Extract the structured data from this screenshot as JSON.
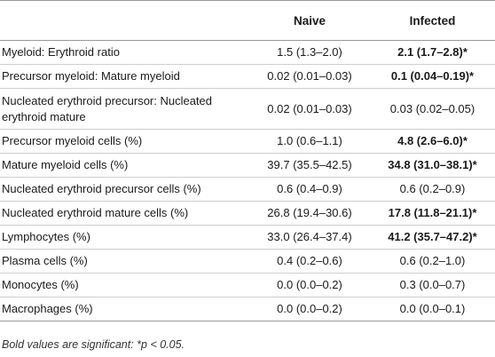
{
  "table": {
    "headers": [
      "",
      "Naive",
      "Infected"
    ],
    "rows": [
      {
        "label": "Myeloid: Erythroid ratio",
        "naive": "1.5 (1.3–2.0)",
        "infected": "2.1 (1.7–2.8)*",
        "infected_bold": true
      },
      {
        "label": "Precursor myeloid: Mature myeloid",
        "naive": "0.02 (0.01–0.03)",
        "infected": "0.1 (0.04–0.19)*",
        "infected_bold": true
      },
      {
        "label": "Nucleated erythroid precursor: Nucleated erythroid mature",
        "naive": "0.02 (0.01–0.03)",
        "infected": "0.03 (0.02–0.05)",
        "infected_bold": false
      },
      {
        "label": "Precursor myeloid cells (%)",
        "naive": "1.0 (0.6–1.1)",
        "infected": "4.8 (2.6–6.0)*",
        "infected_bold": true
      },
      {
        "label": "Mature myeloid cells (%)",
        "naive": "39.7 (35.5–42.5)",
        "infected": "34.8 (31.0–38.1)*",
        "infected_bold": true
      },
      {
        "label": "Nucleated erythroid precursor cells (%)",
        "naive": "0.6 (0.4–0.9)",
        "infected": "0.6 (0.2–0.9)",
        "infected_bold": false
      },
      {
        "label": "Nucleated erythroid mature cells (%)",
        "naive": "26.8 (19.4–30.6)",
        "infected": "17.8 (11.8–21.1)*",
        "infected_bold": true
      },
      {
        "label": "Lymphocytes (%)",
        "naive": "33.0 (26.4–37.4)",
        "infected": "41.2 (35.7–47.2)*",
        "infected_bold": true
      },
      {
        "label": "Plasma cells (%)",
        "naive": "0.4 (0.2–0.6)",
        "infected": "0.6 (0.2–1.0)",
        "infected_bold": false
      },
      {
        "label": "Monocytes (%)",
        "naive": "0.0 (0.0–0.2)",
        "infected": "0.3 (0.0–0.7)",
        "infected_bold": false
      },
      {
        "label": "Macrophages (%)",
        "naive": "0.0 (0.0–0.2)",
        "infected": "0.0 (0.0–0.1)",
        "infected_bold": false
      }
    ],
    "footnote": "Bold values are significant: *p < 0.05."
  }
}
